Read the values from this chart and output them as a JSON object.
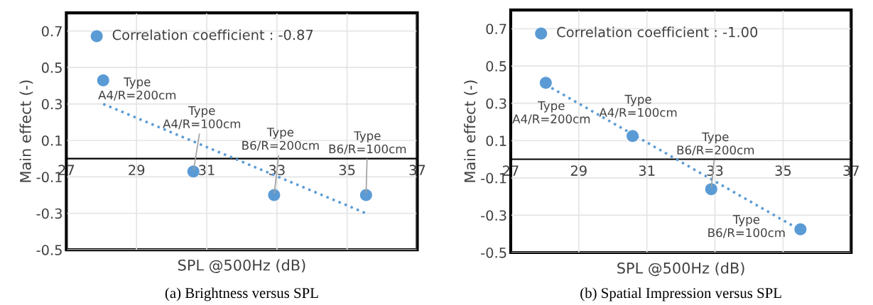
{
  "chart_data": [
    {
      "type": "scatter",
      "title": "(a) Brightness versus SPL",
      "xlabel": "SPL @500Hz (dB)",
      "ylabel": "Main effect (-)",
      "xlim": [
        27,
        37
      ],
      "ylim": [
        -0.5,
        0.8
      ],
      "xticks": [
        27,
        29,
        31,
        33,
        35,
        37
      ],
      "yticks": [
        -0.5,
        -0.3,
        -0.1,
        0.1,
        0.3,
        0.5,
        0.7
      ],
      "grid": true,
      "legend": "top left",
      "marker": "circle",
      "series": [
        {
          "name": "Correlation coefficient : -0.87",
          "color": "#5b9bd5",
          "x": [
            28.05,
            30.62,
            32.92,
            35.54
          ],
          "values": [
            0.43,
            -0.07,
            -0.2,
            -0.2
          ]
        },
        {
          "type": "line",
          "color": "#5b9bd5",
          "line_style": "dotted",
          "marker": "none",
          "x": [
            28.05,
            35.54
          ],
          "values": [
            0.3,
            -0.3
          ]
        }
      ],
      "annotations": [
        {
          "text": "Type\nA4/R=200cm",
          "x": 28.05,
          "y": 0.43
        },
        {
          "text": "Type\nA4/R=100cm",
          "x": 30.62,
          "y": -0.07
        },
        {
          "text": "Type\nB6/R=200cm",
          "x": 32.92,
          "y": -0.2
        },
        {
          "text": "Type\nB6/R=100cm",
          "x": 35.54,
          "y": -0.2
        }
      ]
    },
    {
      "type": "scatter",
      "title": "(b) Spatial Impression versus SPL",
      "xlabel": "SPL @500Hz (dB)",
      "ylabel": "Main effect (-)",
      "xlim": [
        27,
        37
      ],
      "ylim": [
        -0.5,
        0.8
      ],
      "xticks": [
        27,
        29,
        31,
        33,
        35,
        37
      ],
      "yticks": [
        -0.5,
        -0.3,
        -0.1,
        0.1,
        0.3,
        0.5,
        0.7
      ],
      "grid": true,
      "legend": "top left",
      "marker": "circle",
      "series": [
        {
          "name": "Correlation coefficient : -1.00",
          "color": "#5b9bd5",
          "x": [
            28.03,
            30.58,
            32.89,
            35.51
          ],
          "values": [
            0.41,
            0.125,
            -0.16,
            -0.375
          ]
        },
        {
          "type": "line",
          "color": "#5b9bd5",
          "line_style": "dotted",
          "marker": "none",
          "x": [
            28.03,
            35.51
          ],
          "values": [
            0.4,
            -0.38
          ]
        }
      ],
      "annotations": [
        {
          "text": "Type\nA4/R=200cm",
          "x": 28.03,
          "y": 0.41
        },
        {
          "text": "Type\nA4/R=100cm",
          "x": 30.58,
          "y": 0.125
        },
        {
          "text": "Type\nB6/R=200cm",
          "x": 32.89,
          "y": -0.16
        },
        {
          "text": "Type\nB6/R=100cm",
          "x": 35.51,
          "y": -0.375
        }
      ]
    }
  ]
}
